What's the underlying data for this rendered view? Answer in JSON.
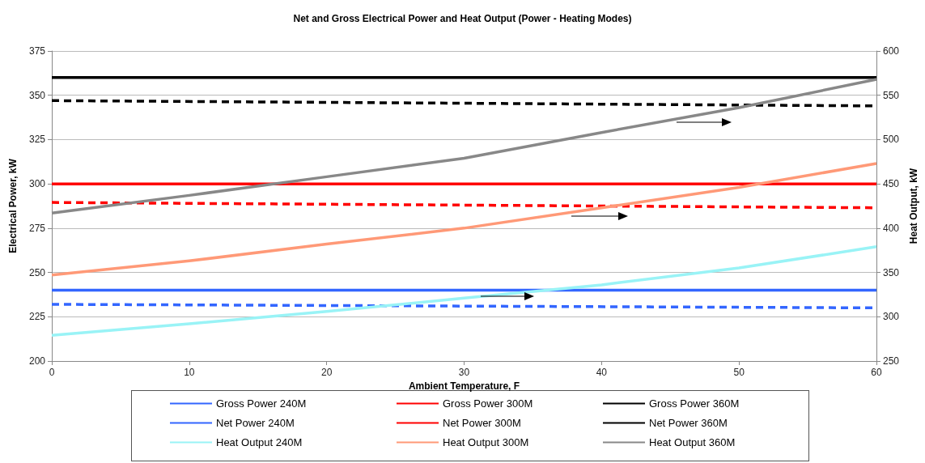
{
  "chart_data": {
    "type": "line",
    "title": "Net and Gross Electrical Power and Heat Output (Power - Heating Modes)",
    "xlabel": "Ambient Temperature, F",
    "ylabel": "Electrical Power, kW",
    "y2label": "Heat Output, kW",
    "xlim": [
      0,
      60
    ],
    "xticks": [
      0,
      10,
      20,
      30,
      40,
      50,
      60
    ],
    "ylim": [
      200,
      375
    ],
    "yticks": [
      200,
      225,
      250,
      275,
      300,
      325,
      350,
      375
    ],
    "y2lim": [
      250,
      600
    ],
    "y2ticks": [
      250,
      300,
      350,
      400,
      450,
      500,
      550,
      600
    ],
    "grid": "y",
    "legend": "bottom",
    "marker": "none",
    "series": [
      {
        "name": "Gross Power 240M",
        "color": "#3366ff",
        "line_style": "solid",
        "x": [
          0,
          60
        ],
        "values": [
          240,
          240
        ]
      },
      {
        "name": "Net Power 240M",
        "color": "#3366ff",
        "line_style": "dashed",
        "x": [
          0,
          60
        ],
        "values": [
          232,
          230
        ]
      },
      {
        "name": "Heat Output 240M",
        "color": "#99f3f6",
        "line_style": "solid",
        "axis": "y2",
        "x": [
          0,
          10,
          20,
          30,
          40,
          50,
          60
        ],
        "values": [
          279,
          292,
          306,
          321,
          336,
          355,
          379
        ]
      },
      {
        "name": "Gross Power 300M",
        "color": "#ff0000",
        "line_style": "solid",
        "x": [
          0,
          60
        ],
        "values": [
          300,
          300
        ]
      },
      {
        "name": "Net Power 300M",
        "color": "#ff0000",
        "line_style": "dashed",
        "x": [
          0,
          60
        ],
        "values": [
          289.5,
          286.5
        ]
      },
      {
        "name": "Heat Output 300M",
        "color": "#ff9977",
        "line_style": "solid",
        "axis": "y2",
        "x": [
          0,
          10,
          20,
          30,
          40,
          50,
          60
        ],
        "values": [
          347,
          363,
          382,
          400,
          423,
          446,
          473
        ]
      },
      {
        "name": "Gross Power 360M",
        "color": "#000000",
        "line_style": "solid",
        "x": [
          0,
          60
        ],
        "values": [
          360,
          360
        ]
      },
      {
        "name": "Net Power 360M",
        "color": "#000000",
        "line_style": "dashed",
        "x": [
          0,
          60
        ],
        "values": [
          347,
          344
        ]
      },
      {
        "name": "Heat Output 360M",
        "color": "#888888",
        "line_style": "solid",
        "axis": "y2",
        "x": [
          0,
          10,
          20,
          30,
          40,
          50,
          60
        ],
        "values": [
          417,
          437,
          458,
          479,
          508,
          536,
          568
        ]
      }
    ]
  }
}
